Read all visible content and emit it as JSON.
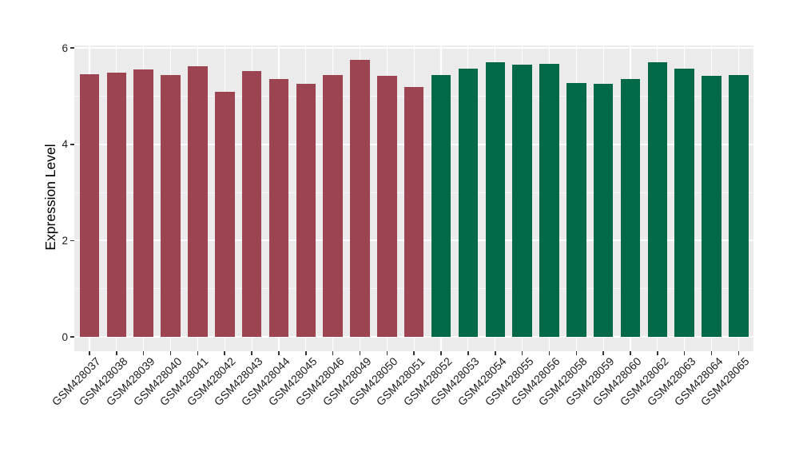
{
  "chart_data": {
    "type": "bar",
    "title": "",
    "xlabel": "",
    "ylabel": "Expression Level",
    "categories": [
      "GSM428037",
      "GSM428038",
      "GSM428039",
      "GSM428040",
      "GSM428041",
      "GSM428042",
      "GSM428043",
      "GSM428044",
      "GSM428045",
      "GSM428046",
      "GSM428049",
      "GSM428050",
      "GSM428051",
      "GSM428052",
      "GSM428053",
      "GSM428054",
      "GSM428055",
      "GSM428056",
      "GSM428058",
      "GSM428059",
      "GSM428060",
      "GSM428062",
      "GSM428063",
      "GSM428064",
      "GSM428065"
    ],
    "values": [
      5.45,
      5.49,
      5.55,
      5.44,
      5.62,
      5.09,
      5.52,
      5.35,
      5.26,
      5.44,
      5.76,
      5.43,
      5.19,
      5.44,
      5.57,
      5.7,
      5.66,
      5.68,
      5.28,
      5.26,
      5.36,
      5.7,
      5.57,
      5.42,
      5.44
    ],
    "bar_groups": [
      0,
      0,
      0,
      0,
      0,
      0,
      0,
      0,
      0,
      0,
      0,
      0,
      0,
      1,
      1,
      1,
      1,
      1,
      1,
      1,
      1,
      1,
      1,
      1,
      1
    ],
    "palette": [
      "#9C4452",
      "#016948"
    ],
    "ylim": [
      0,
      6.05
    ],
    "yticks": [
      0,
      2,
      4,
      6
    ],
    "ytick_labels": [
      "0",
      "2",
      "4",
      "6"
    ],
    "yticks_minor": [
      1,
      3,
      5
    ],
    "grid": true,
    "legend": false,
    "panel_background": "#ebebeb",
    "grid_color": "#ffffff",
    "axis_text_color": "#1c1c1c",
    "tick_mark_color": "#333333"
  }
}
